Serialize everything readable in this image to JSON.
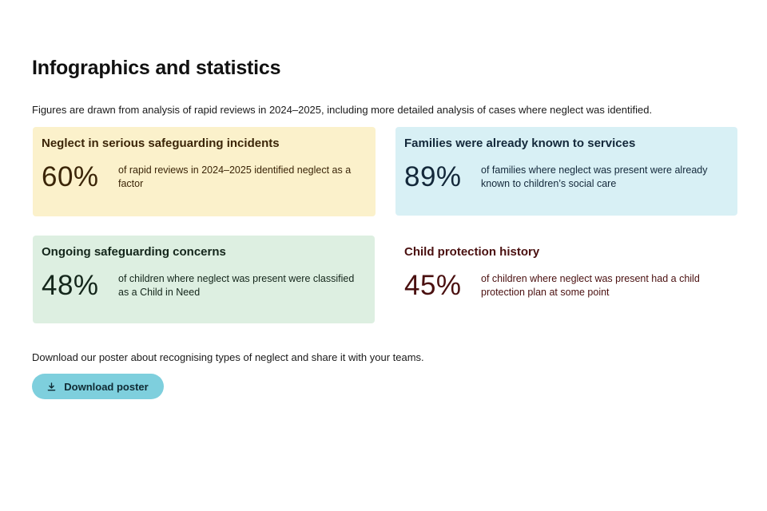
{
  "page": {
    "title": "Infographics and statistics",
    "intro": "Figures are drawn from analysis of rapid reviews in 2024–2025, including more detailed analysis of cases where neglect was identified."
  },
  "cards": [
    {
      "title": "Neglect in serious safeguarding incidents",
      "value": "60%",
      "description": "of rapid reviews in 2024–2025 identified neglect as a factor",
      "background": "#fbf1cb",
      "text_color": "#3b2508"
    },
    {
      "title": "Families were already known to services",
      "value": "89%",
      "description": "of families where neglect was present were already known to children’s social care",
      "background": "#d8f0f5",
      "text_color": "#13283a"
    },
    {
      "title": "Ongoing safeguarding concerns",
      "value": "48%",
      "description": "of children where neglect was present were classified as a Child in Need",
      "background": "#ddefe1",
      "text_color": "#14261b"
    },
    {
      "title": "Child protection history",
      "value": "45%",
      "description": "of children where neglect was present had a child protection plan at some point",
      "background": "#ffffff",
      "text_color": "#4a1010"
    }
  ],
  "download": {
    "text": "Download our poster about recognising types of neglect and share it with your teams.",
    "button_label": "Download poster",
    "button_icon": "download-icon",
    "button_color": "#7ecfdd"
  }
}
